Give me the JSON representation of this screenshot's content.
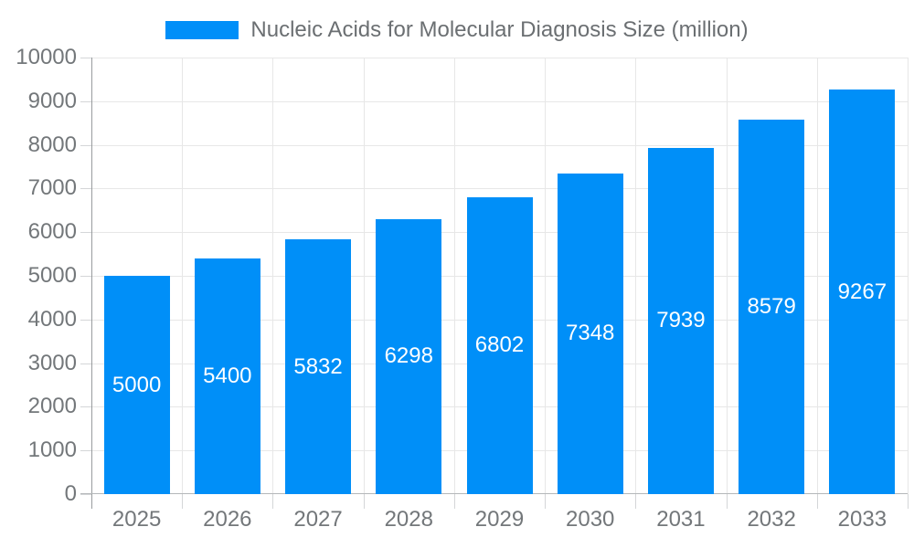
{
  "chart_data": {
    "type": "bar",
    "title": "",
    "legend": "Nucleic Acids for Molecular Diagnosis Size (million)",
    "legend_position": "top-center",
    "categories": [
      "2025",
      "2026",
      "2027",
      "2028",
      "2029",
      "2030",
      "2031",
      "2032",
      "2033"
    ],
    "values": [
      5000,
      5400,
      5832,
      6298,
      6802,
      7348,
      7939,
      8579,
      9267
    ],
    "xlabel": "",
    "ylabel": "",
    "ylim": [
      0,
      10000
    ],
    "ytick_step": 1000,
    "grid": "on",
    "colors": {
      "bar": "#008FF8",
      "bar_label": "#FFFFFF",
      "axis_label": "#73777A",
      "legend_label": "#6B6F72",
      "gridline": "#E7E7E7",
      "axis_line": "#989C9E",
      "bottom_axis_line": "#B4B7B9",
      "tick": "#D4D6D8"
    }
  }
}
